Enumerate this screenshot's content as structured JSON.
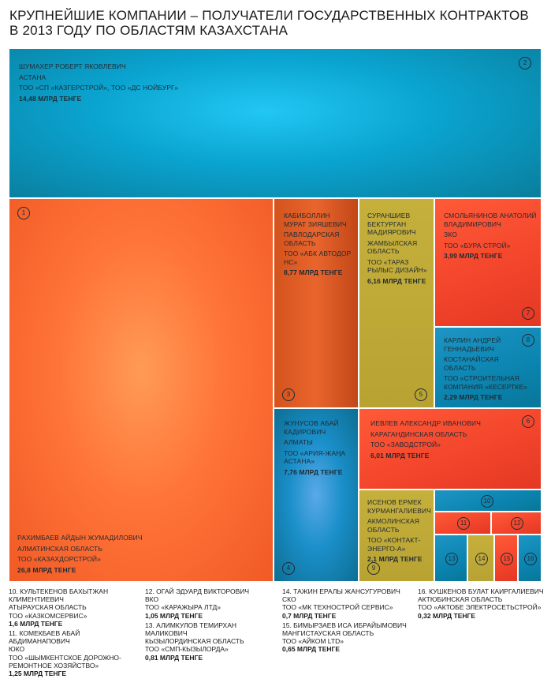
{
  "title_lines": [
    "Крупнейшие компании – получатели государственных контрактов",
    "в 2013 году по областям Казахстана"
  ],
  "chart_data": {
    "type": "treemap",
    "unit": "млрд тенге",
    "items": [
      {
        "id": "1",
        "name": "Рахимбаев Айдын Жумадилович",
        "region": "Алматинская область",
        "company": "ТОО «Казахдорстрой»",
        "value": 26.8,
        "amount": "26,8 млрд тенге"
      },
      {
        "id": "2",
        "name": "Шумахер Роберт Яковлевич",
        "region": "Астана",
        "company": "ТОО «СП «Казгерстрой», ТОО «ДС Нойбург»",
        "value": 14.48,
        "amount": "14,48 млрд тенге"
      },
      {
        "id": "3",
        "name": "Кабиболлин Мурат Зияшевич",
        "region": "Павлодарская область",
        "company": "ТОО «АБК Автодор НС»",
        "value": 8.77,
        "amount": "8,77 млрд тенге"
      },
      {
        "id": "4",
        "name": "Жунусов Абай Кадирович",
        "region": "Алматы",
        "company": "ТОО «Ария-Жаңа Астана»",
        "value": 7.76,
        "amount": "7,76 млрд тенге"
      },
      {
        "id": "5",
        "name": "Сураншиев Бектурган Мадиярович",
        "region": "Жамбылская область",
        "company": "ТОО «Тараз Рылыс Дизайн»",
        "value": 6.16,
        "amount": "6,16 млрд тенге"
      },
      {
        "id": "6",
        "name": "Иевлев Александр Иванович",
        "region": "Карагандинская область",
        "company": "ТОО «Заводстрой»",
        "value": 6.01,
        "amount": "6,01 млрд тенге"
      },
      {
        "id": "7",
        "name": "Смольянинов Анатолий Владимирович",
        "region": "ЗКО",
        "company": "ТОО «Бура Строй»",
        "value": 3.99,
        "amount": "3,99 млрд тенге"
      },
      {
        "id": "8",
        "name": "Карлин Андрей Геннадьевич",
        "region": "Костанайская область",
        "company": "ТОО «Строительная компания «Кесертке»",
        "value": 2.29,
        "amount": "2,29 млрд тенге"
      },
      {
        "id": "9",
        "name": "Исенов Ермек Курмангалиевич",
        "region": "Акмолинская область",
        "company": "ТОО «Контакт-Энерго-А»",
        "value": 2.1,
        "amount": "2,1 млрд тенге"
      },
      {
        "id": "10",
        "name": "Культекенов Бахытжан Климентиевич",
        "region": "Атырауская область",
        "company": "ТОО «Казкомсервис»",
        "value": 1.6,
        "amount": "1,6 млрд тенге"
      },
      {
        "id": "11",
        "name": "Комекбаев Абай Абдиманапович",
        "region": "ЮКО",
        "company": "ТОО «Шымкентское дорожно-ремонтное хозяйство»",
        "value": 1.25,
        "amount": "1,25 млрд тенге"
      },
      {
        "id": "12",
        "name": "Огай Эдуард Викторович",
        "region": "ВКО",
        "company": "ТОО «Каражыра ЛТД»",
        "value": 1.05,
        "amount": "1,05 млрд тенге"
      },
      {
        "id": "13",
        "name": "Алимкулов Темирхан Маликович",
        "region": "Кызылординская область",
        "company": "ТОО «СМП-Кызылорда»",
        "value": 0.81,
        "amount": "0,81 млрд тенге"
      },
      {
        "id": "14",
        "name": "Тажин Ералы Жансугурович",
        "region": "СКО",
        "company": "ТОО «МК Технострой сервис»",
        "value": 0.7,
        "amount": "0,7 млрд тенге"
      },
      {
        "id": "15",
        "name": "Бимырзаев Иса Ибрайымович",
        "region": "Мангистауская область",
        "company": "ТОО «Айком LTD»",
        "value": 0.65,
        "amount": "0,65 млрд тенге"
      },
      {
        "id": "16",
        "name": "Кушкенов Булат Каиргалиевич",
        "region": "Актюбинская область",
        "company": "ТОО «Актобе Электросетьстрой»",
        "value": 0.32,
        "amount": "0,32 млрд тенге"
      }
    ]
  },
  "cell_labels": {
    "2": {
      "name": "Шумахер Роберт Яковлевич"
    },
    "1": {
      "name": "Рахимбаев Айдын Жумадилович"
    },
    "3": {
      "name": "Кабиболлин Мурат Зияшевич"
    },
    "5": {
      "name": "Сураншиев Бектурган Мадиярович"
    },
    "7": {
      "name": "Смольянинов Анатолий Владимирович"
    },
    "8": {
      "name": "Карлин Андрей Геннадьевич"
    },
    "4": {
      "name": "Жунусов Абай Кадирович"
    },
    "6": {
      "name": "Иевлев Александр Иванович"
    },
    "9": {
      "name": "Исенов Ермек Курмангалиевич"
    }
  },
  "legend": [
    {
      "id": "10",
      "label": "10. Культекенов Бахытжан Климентиевич",
      "region": "Атырауская область",
      "company": "ТОО «Казкомсервис»",
      "amount": "1,6 млрд тенге"
    },
    {
      "id": "11",
      "label": "11. Комекбаев Абай Абдиманапович",
      "region": "ЮКО",
      "company": "ТОО «Шымкентское дорожно-ремонтное хозяйство»",
      "amount": "1,25 млрд тенге"
    },
    {
      "id": "12",
      "label": "12. Огай Эдуард Викторович",
      "region": "ВКО",
      "company": "ТОО «Каражыра ЛТД»",
      "amount": "1,05 млрд тенге"
    },
    {
      "id": "13",
      "label": "13. Алимкулов Темирхан Маликович",
      "region": "Кызылординская область",
      "company": "ТОО «СМП-Кызылорда»",
      "amount": "0,81 млрд тенге"
    },
    {
      "id": "14",
      "label": "14. Тажин Ералы Жансугурович",
      "region": "СКО",
      "company": "ТОО «МК Технострой сервис»",
      "amount": "0,7 млрд тенге"
    },
    {
      "id": "15",
      "label": "15. Бимырзаев Иса Ибрайымович",
      "region": "Мангистауская область",
      "company": "ТОО «Айком LTD»",
      "amount": "0,65 млрд тенге"
    },
    {
      "id": "16",
      "label": "16. Кушкенов Булат Каиргалиевич",
      "region": "Актюбинская область",
      "company": "ТОО «Актобе Электросетьстрой»",
      "amount": "0,32 млрд тенге"
    }
  ],
  "colors": {
    "blue": "#0aa3cf",
    "orange": "#ff7438",
    "red": "#f2442b",
    "olive": "#c6b03c",
    "badge_stroke": "#1f2a33"
  }
}
